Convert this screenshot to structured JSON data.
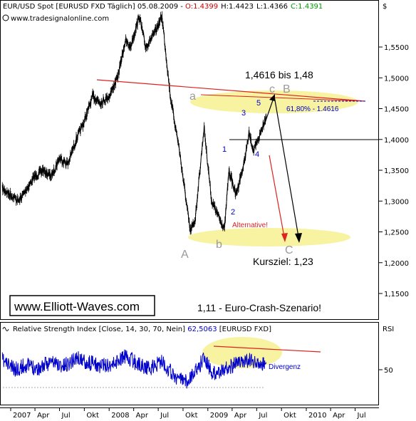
{
  "price_panel": {
    "header_title": "EUR/USD Spot [EURUSD FXD  Täglich] 05.08.2009 - ",
    "ohlc": {
      "open": "O:1.4399",
      "high": "H:1.4423",
      "low": "L:1.4366",
      "close": "C:1.4391"
    },
    "copyright": "www.tradesignalonline.com",
    "currency_label": "$",
    "watermark": "www.Elliott-Waves.com",
    "scenario_text": "1,11 - Euro-Crash-Szenario!",
    "target_range_text": "1,4616 bis 1,48",
    "kursziel_text": "Kursziel: 1,23",
    "fib_text": "61,80% - 1.4616",
    "alternative_text": "Alternative!",
    "wave_labels": {
      "w1": "1",
      "w2": "2",
      "w3": "3",
      "w4": "4",
      "w5": "5",
      "A": "A",
      "b": "b",
      "a": "a",
      "c": "c",
      "B": "B",
      "C": "C"
    }
  },
  "rsi_panel": {
    "header_title": "Relative Strength Index [Close, 14, 30, 70, Nein] ",
    "value": "62,5063",
    "symbol": " [EURUSD FXD]",
    "axis_label": "RSI",
    "divergence_text": "Divergenz",
    "level_tick": "50"
  },
  "x_axis_labels": [
    "2007",
    "Apr",
    "Jul",
    "Okt",
    "2008",
    "Apr",
    "Jul",
    "Okt",
    "2009",
    "Apr",
    "Jul",
    "Okt",
    "2010",
    "Apr",
    "Jul"
  ],
  "colors": {
    "price_line": "#000000",
    "rsi_line": "#0000cc",
    "trendline": "#dd2222",
    "highlight": "#f7f3a0",
    "alternative_arrow": "#dd2222",
    "main_arrow": "#000000",
    "wave_number": "#0000cc",
    "abc_label": "#9a9a9a"
  },
  "chart_data": [
    {
      "type": "line",
      "series": [
        {
          "x": [
            "2006-12-01",
            "2007-01-01",
            "2007-02-01",
            "2007-03-01",
            "2007-04-01",
            "2007-05-01",
            "2007-06-01",
            "2007-07-01",
            "2007-08-01",
            "2007-09-01",
            "2007-10-01",
            "2007-11-01",
            "2007-12-01",
            "2008-01-01",
            "2008-02-01",
            "2008-03-01",
            "2008-03-20",
            "2008-04-22",
            "2008-05-15",
            "2008-06-15",
            "2008-07-15",
            "2008-08-15",
            "2008-09-15",
            "2008-10-28",
            "2008-11-15",
            "2008-12-18",
            "2009-01-15",
            "2009-02-15",
            "2009-03-04",
            "2009-03-20",
            "2009-04-15",
            "2009-05-15",
            "2009-06-03",
            "2009-06-20",
            "2009-07-15",
            "2009-08-05"
          ],
          "y": [
            1.32,
            1.31,
            1.3,
            1.32,
            1.34,
            1.35,
            1.34,
            1.37,
            1.36,
            1.4,
            1.43,
            1.47,
            1.46,
            1.47,
            1.5,
            1.56,
            1.55,
            1.6,
            1.55,
            1.57,
            1.6,
            1.47,
            1.39,
            1.25,
            1.27,
            1.42,
            1.3,
            1.27,
            1.255,
            1.35,
            1.31,
            1.36,
            1.41,
            1.38,
            1.41,
            1.4391
          ]
        }
      ],
      "y_ticks": [
        "1,5500",
        "1,5000",
        "1,4500",
        "1,4000",
        "1,3500",
        "1,3000",
        "1,2500",
        "1,2000",
        "1,1500"
      ],
      "ylim": [
        1.12,
        1.62
      ],
      "annotations": [
        "1,4616 bis 1,48",
        "Kursziel: 1,23",
        "61,80% - 1.4616",
        "Alternative!",
        "1,11 - Euro-Crash-Szenario!"
      ],
      "grid": false
    },
    {
      "type": "line",
      "series": [
        {
          "x": [
            "2006-12-01",
            "2007-01-15",
            "2007-03-01",
            "2007-04-15",
            "2007-06-01",
            "2007-07-15",
            "2007-09-01",
            "2007-10-15",
            "2007-12-01",
            "2008-01-15",
            "2008-03-01",
            "2008-04-15",
            "2008-06-01",
            "2008-07-15",
            "2008-09-01",
            "2008-10-15",
            "2008-12-01",
            "2008-12-18",
            "2009-01-15",
            "2009-03-01",
            "2009-04-15",
            "2009-06-01",
            "2009-07-15",
            "2009-08-05"
          ],
          "y": [
            66,
            50,
            58,
            52,
            64,
            55,
            70,
            62,
            56,
            60,
            72,
            60,
            52,
            64,
            38,
            30,
            56,
            72,
            44,
            50,
            60,
            66,
            56,
            62.5063
          ]
        }
      ],
      "y_ticks": [
        "50"
      ],
      "ylim": [
        10,
        100
      ],
      "annotations": [
        "Divergenz"
      ]
    }
  ]
}
